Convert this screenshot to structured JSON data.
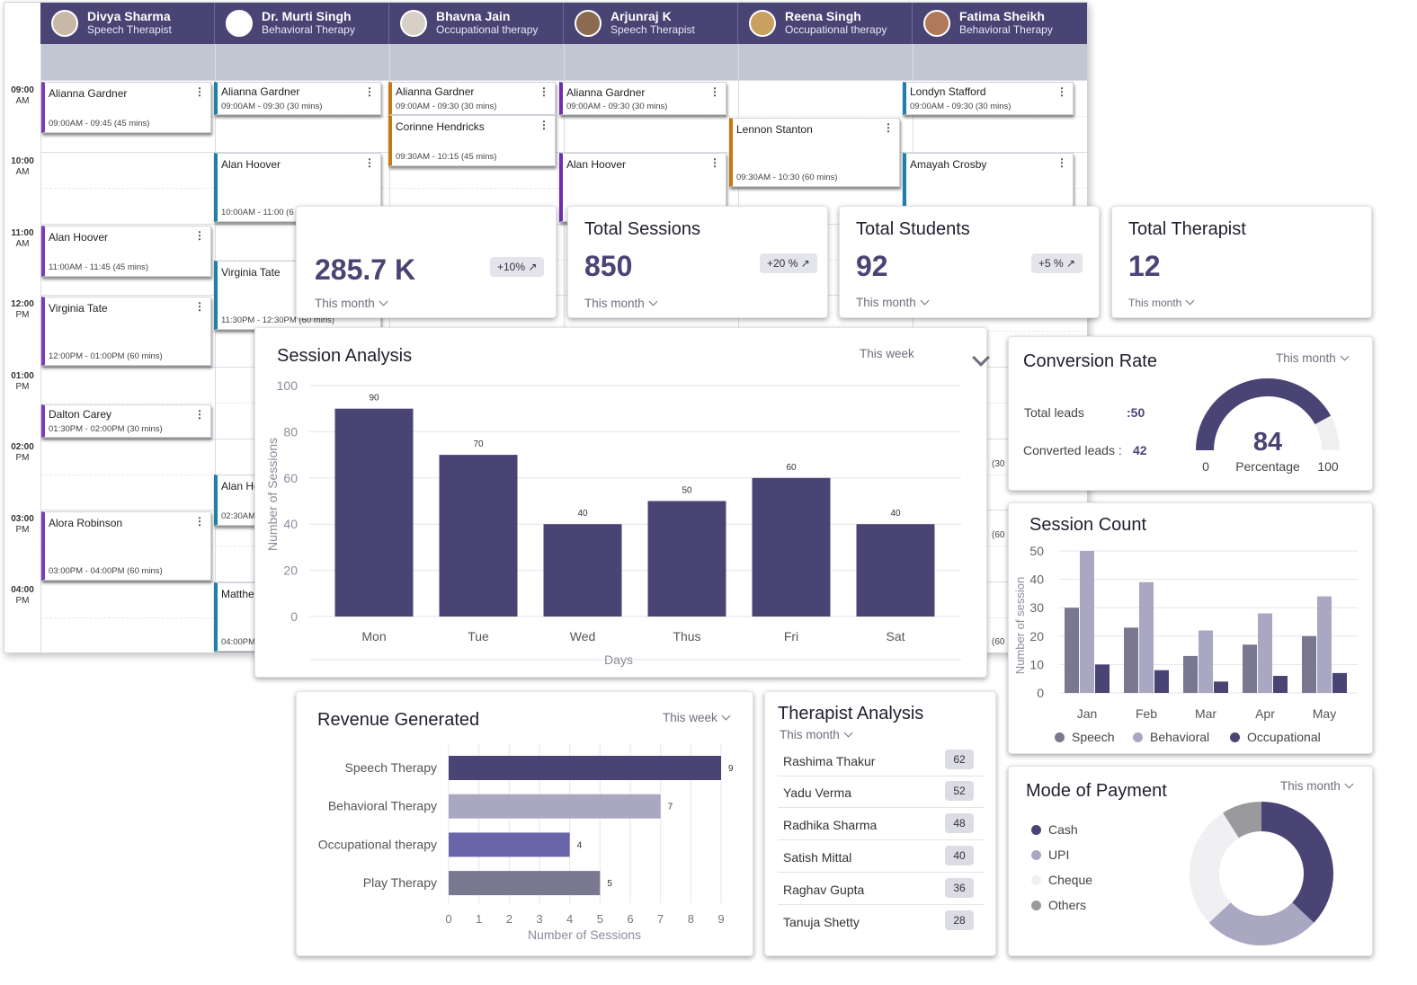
{
  "calendar": {
    "therapists": [
      {
        "name": "Divya Sharma",
        "role": "Speech Therapist"
      },
      {
        "name": "Dr. Murti Singh",
        "role": "Behavioral Therapy"
      },
      {
        "name": "Bhavna Jain",
        "role": "Occupational therapy"
      },
      {
        "name": "Arjunraj K",
        "role": "Speech Therapist"
      },
      {
        "name": "Reena Singh",
        "role": "Occupational therapy"
      },
      {
        "name": "Fatima Sheikh",
        "role": "Behavioral Therapy"
      }
    ],
    "times": [
      {
        "hour": "09:00",
        "ampm": "AM"
      },
      {
        "hour": "10:00",
        "ampm": "AM"
      },
      {
        "hour": "11:00",
        "ampm": "AM"
      },
      {
        "hour": "12:00",
        "ampm": "PM"
      },
      {
        "hour": "01:00",
        "ampm": "PM"
      },
      {
        "hour": "02:00",
        "ampm": "PM"
      },
      {
        "hour": "03:00",
        "ampm": "PM"
      },
      {
        "hour": "04:00",
        "ampm": "PM"
      }
    ],
    "appointments": [
      {
        "name": "Alianna Gardner",
        "time": "09:00AM - 09:45 (45 mins)"
      },
      {
        "name": "Alan Hoover",
        "time": "11:00AM - 11:45 (45 mins)"
      },
      {
        "name": "Virginia Tate",
        "time": "12:00PM - 01:00PM (60 mins)"
      },
      {
        "name": "Dalton Carey",
        "time": "01:30PM - 02:00PM (30 mins)"
      },
      {
        "name": "Alora Robinson",
        "time": "03:00PM - 04:00PM (60 mins)"
      },
      {
        "name": "Alianna Gardner",
        "time": "09:00AM - 09:30 (30 mins)"
      },
      {
        "name": "Alan Hoover",
        "time": "10:00AM - 11:00 (6"
      },
      {
        "name": "Virginia Tate",
        "time": "11:30PM - 12:30PM (60 mins)"
      },
      {
        "name": "Alan Ho",
        "time": "02:30AM"
      },
      {
        "name": "Matthe",
        "time": "04:00PM"
      },
      {
        "name": "Alianna Gardner",
        "time": "09:00AM - 09:30 (30 mins)"
      },
      {
        "name": "Corinne Hendricks",
        "time": "09:30AM - 10:15 (45 mins)"
      },
      {
        "name": "Alianna Gardner",
        "time": "09:00AM - 09:30 (30 mins)"
      },
      {
        "name": "Alan Hoover",
        "time": ""
      },
      {
        "name": "Lennon Stanton",
        "time": "09:30AM - 10:30 (60 mins)"
      },
      {
        "name": "Londyn Stafford",
        "time": "09:00AM - 09:30 (30 mins)"
      },
      {
        "name": "Amayah Crosby",
        "time": ""
      }
    ],
    "edge_fragments": [
      "(30",
      "(60",
      "(60"
    ]
  },
  "revenue_card": {
    "value": "285.7 K",
    "badge": "+10% ↗",
    "period": "This month"
  },
  "sessions_card": {
    "title": "Total Sessions",
    "value": "850",
    "badge": "+20 % ↗",
    "period": "This month"
  },
  "students_card": {
    "title": "Total Students",
    "value": "92",
    "badge": "+5 % ↗",
    "period": "This month"
  },
  "therapist_card": {
    "title": "Total Therapist",
    "value": "12",
    "period": "This month"
  },
  "session_analysis": {
    "title": "Session Analysis",
    "period": "This week",
    "chart_data": {
      "type": "bar",
      "categories": [
        "Mon",
        "Tue",
        "Wed",
        "Thus",
        "Fri",
        "Sat"
      ],
      "values": [
        90,
        70,
        40,
        50,
        60,
        40
      ],
      "xlabel": "Days",
      "ylabel": "Number of Sessions",
      "ylim": [
        0,
        100
      ],
      "yticks": [
        0,
        20,
        40,
        60,
        80,
        100
      ],
      "color": "#4a4475",
      "grid": true
    }
  },
  "conversion": {
    "title": "Conversion Rate",
    "period": "This month",
    "total_leads_label": "Total leads",
    "total_leads_value": ":50",
    "converted_label": "Converted leads :",
    "converted_value": "42",
    "gauge_value": "84",
    "gauge_percent": 84,
    "gauge_min": "0",
    "gauge_max": "100",
    "gauge_caption": "Percentage"
  },
  "session_count": {
    "title": "Session Count",
    "chart_data": {
      "type": "bar",
      "categories": [
        "Jan",
        "Feb",
        "Mar",
        "Apr",
        "May"
      ],
      "series": [
        {
          "name": "Speech",
          "values": [
            30,
            23,
            13,
            17,
            20
          ],
          "color": "#7a7890"
        },
        {
          "name": "Behavioral",
          "values": [
            50,
            39,
            22,
            28,
            34
          ],
          "color": "#a9a7c2"
        },
        {
          "name": "Occupational",
          "values": [
            10,
            8,
            4,
            6,
            7
          ],
          "color": "#4a4475"
        }
      ],
      "ylabel": "Number of session",
      "ylim": [
        0,
        50
      ],
      "yticks": [
        0,
        10,
        20,
        30,
        40,
        50
      ],
      "legend": "bottom",
      "grid": true
    }
  },
  "revenue_generated": {
    "title": "Revenue Generated",
    "period": "This week",
    "chart_data": {
      "type": "bar",
      "orientation": "horizontal",
      "categories": [
        "Speech Therapy",
        "Behavioral Therapy",
        "Occupational therapy",
        "Play Therapy"
      ],
      "values": [
        9,
        7,
        4,
        5
      ],
      "colors": [
        "#4a4475",
        "#a9a7c2",
        "#6a64a8",
        "#7a7890"
      ],
      "xlabel": "Number of Sessions",
      "xlim": [
        0,
        9
      ],
      "xticks": [
        0,
        1,
        2,
        3,
        4,
        5,
        6,
        7,
        8,
        9
      ],
      "grid": true
    }
  },
  "therapist_analysis": {
    "title": "Therapist Analysis",
    "period": "This month",
    "rows": [
      {
        "name": "Rashima Thakur",
        "count": "62"
      },
      {
        "name": "Yadu Verma",
        "count": "52"
      },
      {
        "name": "Radhika Sharma",
        "count": "48"
      },
      {
        "name": "Satish Mittal",
        "count": "40"
      },
      {
        "name": "Raghav Gupta",
        "count": "36"
      },
      {
        "name": "Tanuja Shetty",
        "count": "28"
      }
    ]
  },
  "mode_of_payment": {
    "title": "Mode of Payment",
    "period": "This month",
    "chart_data": {
      "type": "pie",
      "donut": true,
      "labels": [
        "Cash",
        "UPI",
        "Cheque",
        "Others"
      ],
      "values": [
        37,
        26,
        28,
        9
      ],
      "colors": [
        "#4a4475",
        "#a9a7c2",
        "#f0f0f3",
        "#9a9a9e"
      ],
      "legend": "left"
    }
  }
}
